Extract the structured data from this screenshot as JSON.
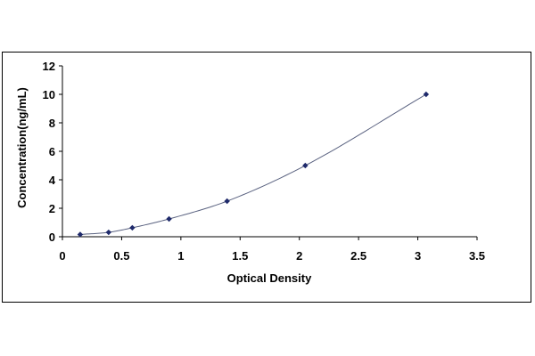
{
  "chart_data": {
    "type": "scatter",
    "title": "",
    "xlabel": "Optical Density",
    "ylabel": "Concentration(ng/mL)",
    "xlim": [
      0,
      3.5
    ],
    "ylim": [
      0,
      12
    ],
    "x_ticks": [
      "0",
      "0.5",
      "1",
      "1.5",
      "2",
      "2.5",
      "3",
      "3.5"
    ],
    "y_ticks": [
      "0",
      "2",
      "4",
      "6",
      "8",
      "10",
      "12"
    ],
    "grid": false,
    "legend": "none",
    "series": [
      {
        "x": [
          0.15,
          0.39,
          0.59,
          0.9,
          1.39,
          2.05,
          3.07
        ],
        "y": [
          0.16,
          0.31,
          0.63,
          1.25,
          2.5,
          5,
          10
        ]
      }
    ],
    "trendline": true,
    "colors": {
      "marker": "#1f2a6b",
      "line": "#5a6280",
      "axis": "#000000"
    }
  }
}
